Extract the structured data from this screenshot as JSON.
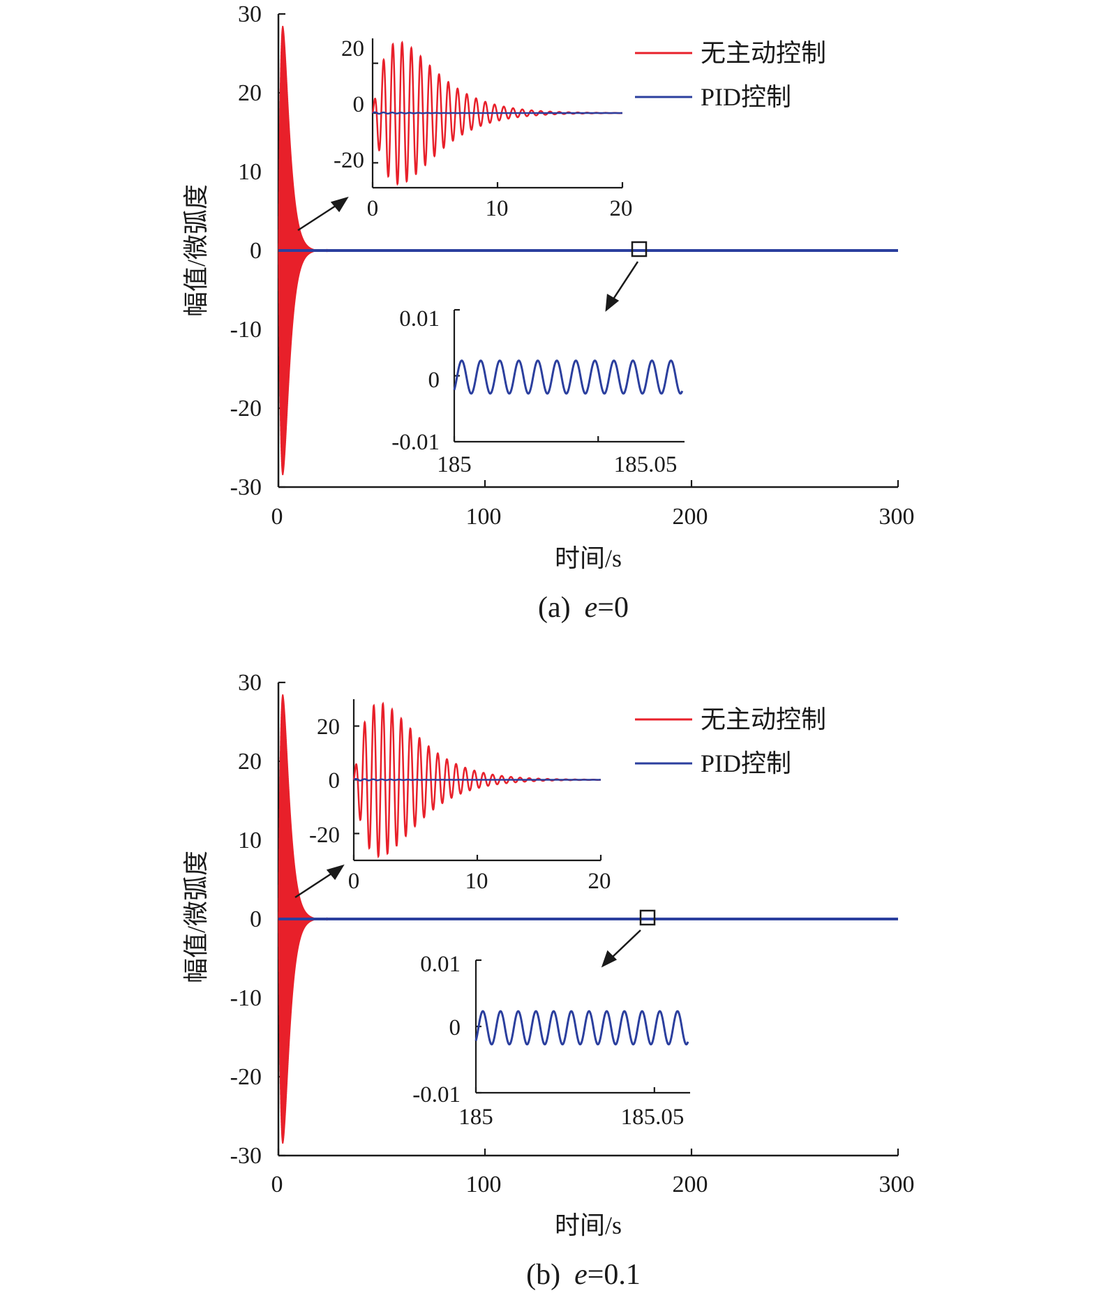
{
  "colors": {
    "uncontrolled": "#e8202a",
    "pid": "#2b3f9e",
    "axis": "#1a1a1a"
  },
  "legend": [
    "无主动控制",
    "PID控制"
  ],
  "charts": [
    {
      "id": "a",
      "caption": {
        "prefix": "(a)",
        "var": "e",
        "suffix": "=0"
      },
      "ylabel": "幅值/微弧度",
      "xlabel": "时间/s",
      "main": {
        "xlim": [
          0,
          300
        ],
        "ylim": [
          -30,
          30
        ],
        "xticks": [
          "0",
          "100",
          "200",
          "300"
        ],
        "yticks": [
          "30",
          "20",
          "10",
          "0",
          "-10",
          "-20",
          "-30"
        ],
        "peak": 28.5
      },
      "inset_top": {
        "xlim": [
          0,
          20
        ],
        "ylim": [
          -30,
          30
        ],
        "xticks": [
          "0",
          "10",
          "20"
        ],
        "yticks": [
          "20",
          "0",
          "-20"
        ]
      },
      "inset_bottom": {
        "xlim": [
          185,
          185.08
        ],
        "ylim": [
          -0.01,
          0.01
        ],
        "xticks": [
          "185",
          "185.05"
        ],
        "yticks": [
          "0.01",
          "0",
          "-0.01"
        ],
        "zoom_center": 175
      }
    },
    {
      "id": "b",
      "caption": {
        "prefix": "(b)",
        "var": "e",
        "suffix": "=0.1"
      },
      "ylabel": "幅值/微弧度",
      "xlabel": "时间/s",
      "main": {
        "xlim": [
          0,
          300
        ],
        "ylim": [
          -30,
          30
        ],
        "xticks": [
          "0",
          "100",
          "200",
          "300"
        ],
        "yticks": [
          "30",
          "20",
          "10",
          "0",
          "-10",
          "-20",
          "-30"
        ],
        "peak": 28.5
      },
      "inset_top": {
        "xlim": [
          0,
          20
        ],
        "ylim": [
          -30,
          30
        ],
        "xticks": [
          "0",
          "10",
          "20"
        ],
        "yticks": [
          "20",
          "0",
          "-20"
        ]
      },
      "inset_bottom": {
        "xlim": [
          185,
          185.06
        ],
        "ylim": [
          -0.01,
          0.01
        ],
        "xticks": [
          "185",
          "185.05"
        ],
        "yticks": [
          "0.01",
          "0",
          "-0.01"
        ],
        "zoom_center": 179
      }
    }
  ]
}
